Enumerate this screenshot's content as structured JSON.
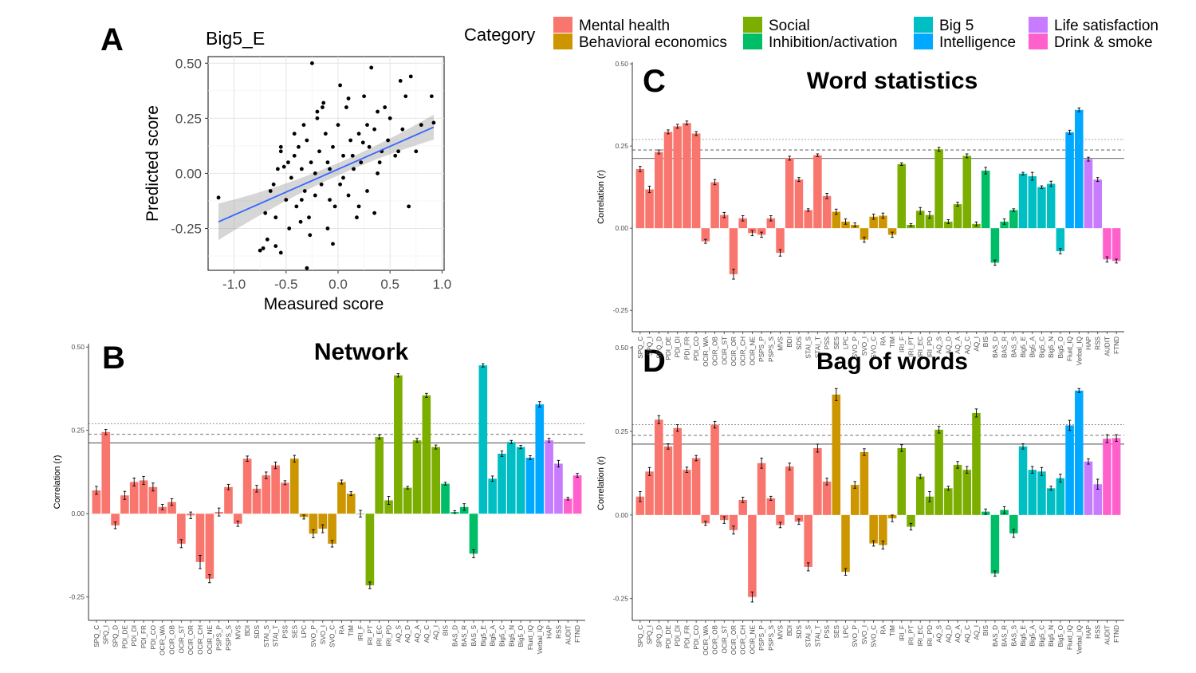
{
  "legend": {
    "title": "Category",
    "items": [
      {
        "label": "Mental health",
        "color": "#F8766D"
      },
      {
        "label": "Behavioral economics",
        "color": "#CD9600"
      },
      {
        "label": "Social",
        "color": "#7CAE00"
      },
      {
        "label": "Inhibition/activation",
        "color": "#00BE67"
      },
      {
        "label": "Big 5",
        "color": "#00BFC4"
      },
      {
        "label": "Intelligence",
        "color": "#00A9FF"
      },
      {
        "label": "Life satisfaction",
        "color": "#C77CFF"
      },
      {
        "label": "Drink & smoke",
        "color": "#FF61CC"
      }
    ]
  },
  "chart_data": [
    {
      "panel": "A",
      "type": "scatter",
      "title": "Big5_E",
      "xlabel": "Measured score",
      "ylabel": "Predicted score",
      "xlim": [
        -1.25,
        1.02
      ],
      "ylim": [
        -0.44,
        0.53
      ],
      "x_ticks": [
        -1.0,
        -0.5,
        0.0,
        0.5,
        1.0
      ],
      "x_tick_labels": [
        "-1.0",
        "-0.5",
        "0.0",
        "0.5",
        "1.0"
      ],
      "y_ticks": [
        -0.25,
        0.0,
        0.25,
        0.5
      ],
      "y_tick_labels": [
        "-0.25",
        "0.00",
        "0.25",
        "0.50"
      ],
      "grid": true,
      "fit_line": {
        "x": [
          -1.15,
          0.92
        ],
        "y": [
          -0.22,
          0.21
        ],
        "color": "#3366FF"
      },
      "points": [
        [
          -1.15,
          -0.11
        ],
        [
          -0.75,
          -0.35
        ],
        [
          -0.72,
          -0.34
        ],
        [
          -0.68,
          -0.3
        ],
        [
          -0.6,
          -0.33
        ],
        [
          -0.55,
          -0.36
        ],
        [
          -0.65,
          -0.08
        ],
        [
          -0.62,
          -0.05
        ],
        [
          -0.58,
          0.02
        ],
        [
          -0.55,
          0.1
        ],
        [
          -0.52,
          0.03
        ],
        [
          -0.5,
          -0.12
        ],
        [
          -0.48,
          0.05
        ],
        [
          -0.45,
          -0.02
        ],
        [
          -0.42,
          0.08
        ],
        [
          -0.4,
          -0.15
        ],
        [
          -0.38,
          0.12
        ],
        [
          -0.35,
          0.02
        ],
        [
          -0.32,
          -0.08
        ],
        [
          -0.3,
          0.15
        ],
        [
          -0.28,
          -0.2
        ],
        [
          -0.26,
          0.05
        ],
        [
          -0.25,
          0.5
        ],
        [
          -0.22,
          -0.1
        ],
        [
          -0.2,
          0.25
        ],
        [
          -0.18,
          0.1
        ],
        [
          -0.16,
          -0.05
        ],
        [
          -0.15,
          0.3
        ],
        [
          -0.12,
          0.18
        ],
        [
          -0.1,
          -0.25
        ],
        [
          -0.08,
          0.02
        ],
        [
          -0.05,
          0.12
        ],
        [
          -0.03,
          -0.15
        ],
        [
          0.0,
          0.22
        ],
        [
          0.02,
          -0.05
        ],
        [
          0.05,
          0.08
        ],
        [
          0.08,
          0.3
        ],
        [
          0.1,
          -0.1
        ],
        [
          0.12,
          0.15
        ],
        [
          0.15,
          0.02
        ],
        [
          0.18,
          -0.2
        ],
        [
          0.2,
          0.18
        ],
        [
          0.22,
          0.05
        ],
        [
          0.25,
          0.35
        ],
        [
          0.28,
          -0.08
        ],
        [
          0.3,
          0.12
        ],
        [
          0.32,
          0.48
        ],
        [
          0.35,
          0.2
        ],
        [
          0.38,
          0.0
        ],
        [
          0.42,
          0.1
        ],
        [
          0.45,
          0.3
        ],
        [
          0.5,
          0.25
        ],
        [
          0.55,
          0.08
        ],
        [
          0.6,
          0.42
        ],
        [
          0.65,
          0.35
        ],
        [
          0.68,
          -0.15
        ],
        [
          0.7,
          0.44
        ],
        [
          0.75,
          0.1
        ],
        [
          0.8,
          0.22
        ],
        [
          0.9,
          0.35
        ],
        [
          0.92,
          0.23
        ],
        [
          -0.7,
          -0.18
        ],
        [
          -0.47,
          -0.25
        ],
        [
          -0.36,
          -0.22
        ],
        [
          -0.27,
          -0.28
        ],
        [
          -0.05,
          -0.32
        ],
        [
          0.35,
          -0.18
        ],
        [
          -0.55,
          0.12
        ],
        [
          -0.33,
          0.22
        ],
        [
          -0.14,
          0.32
        ],
        [
          0.1,
          0.34
        ],
        [
          0.02,
          0.4
        ],
        [
          -0.2,
          0.28
        ],
        [
          0.4,
          0.05
        ],
        [
          0.58,
          0.1
        ],
        [
          0.2,
          -0.15
        ],
        [
          -0.1,
          0.05
        ],
        [
          0.05,
          -0.02
        ],
        [
          -0.35,
          -0.12
        ],
        [
          0.28,
          0.22
        ],
        [
          -0.22,
          0.0
        ],
        [
          0.14,
          0.08
        ],
        [
          -0.42,
          0.18
        ],
        [
          0.48,
          0.15
        ],
        [
          0.38,
          0.28
        ],
        [
          -0.6,
          -0.2
        ],
        [
          -0.3,
          -0.43
        ],
        [
          -0.08,
          -0.12
        ],
        [
          0.24,
          0.14
        ],
        [
          0.62,
          0.2
        ]
      ]
    },
    {
      "panel": "B",
      "type": "bar",
      "title": "Network",
      "ylabel": "Correlation (r)",
      "ylim": [
        -0.32,
        0.51
      ],
      "y_ticks": [
        -0.25,
        0.0,
        0.25,
        0.5
      ],
      "y_tick_labels": [
        "-0.25",
        "0.00",
        "0.25",
        "0.50"
      ],
      "ref_lines": [
        0.212,
        0.238,
        0.27
      ],
      "categories": [
        "SPQ_C",
        "SPQ_I",
        "SPQ_D",
        "PDI_DE",
        "PDI_DI",
        "PDI_FR",
        "PDI_CO",
        "OCIR_WA",
        "OCIR_OB",
        "OCIR_ST",
        "OCIR_OR",
        "OCIR_CH",
        "OCIR_NE",
        "PSPS_P",
        "PSPS_S",
        "MVS",
        "BDI",
        "SDS",
        "STAI_S",
        "STAI_T",
        "PSS",
        "SES",
        "LPC",
        "SVO_P",
        "SVO_I",
        "SVO_C",
        "RA",
        "TIM",
        "IRI_F",
        "IRI_PT",
        "IRI_EC",
        "IRI_PD",
        "AQ_S",
        "AQ_D",
        "AQ_A",
        "AQ_C",
        "AQ_I",
        "BIS",
        "BAS_D",
        "BAS_R",
        "BAS_S",
        "Big5_E",
        "Big5_A",
        "Big5_C",
        "Big5_N",
        "Big5_O",
        "Fluid_IQ",
        "Verbal_IQ",
        "HAP",
        "RSS",
        "AUDIT",
        "FTND"
      ],
      "groups": [
        0,
        0,
        0,
        0,
        0,
        0,
        0,
        0,
        0,
        0,
        0,
        0,
        0,
        0,
        0,
        0,
        0,
        0,
        0,
        0,
        0,
        1,
        1,
        1,
        1,
        1,
        1,
        1,
        2,
        2,
        2,
        2,
        2,
        2,
        2,
        2,
        2,
        3,
        3,
        3,
        3,
        4,
        4,
        4,
        4,
        4,
        5,
        5,
        6,
        6,
        7,
        7
      ],
      "values": [
        0.07,
        0.245,
        -0.035,
        0.055,
        0.095,
        0.1,
        0.08,
        0.02,
        0.035,
        -0.09,
        -0.005,
        -0.145,
        -0.195,
        0.005,
        0.08,
        -0.03,
        0.165,
        0.075,
        0.115,
        0.145,
        0.093,
        0.165,
        -0.01,
        -0.06,
        -0.045,
        -0.09,
        0.095,
        0.06,
        0.0,
        -0.215,
        0.23,
        0.04,
        0.415,
        0.078,
        0.22,
        0.355,
        0.2,
        0.09,
        0.005,
        0.02,
        -0.12,
        0.445,
        0.105,
        0.18,
        0.215,
        0.2,
        0.168,
        0.328,
        0.22,
        0.15,
        0.045,
        0.115
      ],
      "errors": [
        0.012,
        0.008,
        0.01,
        0.012,
        0.012,
        0.012,
        0.012,
        0.008,
        0.01,
        0.012,
        0.01,
        0.02,
        0.012,
        0.012,
        0.008,
        0.008,
        0.008,
        0.01,
        0.01,
        0.01,
        0.006,
        0.01,
        0.006,
        0.012,
        0.012,
        0.01,
        0.006,
        0.006,
        0.01,
        0.01,
        0.006,
        0.012,
        0.005,
        0.004,
        0.006,
        0.006,
        0.006,
        0.004,
        0.004,
        0.01,
        0.012,
        0.005,
        0.008,
        0.008,
        0.005,
        0.005,
        0.006,
        0.008,
        0.006,
        0.01,
        0.004,
        0.006
      ]
    },
    {
      "panel": "C",
      "type": "bar",
      "title": "Word statistics",
      "ylabel": "Correlation (r)",
      "ylim": [
        -0.315,
        0.505
      ],
      "y_ticks": [
        -0.25,
        0.0,
        0.25,
        0.5
      ],
      "y_tick_labels": [
        "-0.25",
        "0.00",
        "0.25",
        "0.50"
      ],
      "ref_lines": [
        0.212,
        0.238,
        0.27
      ],
      "categories": [
        "SPQ_C",
        "SPQ_I",
        "SPQ_D",
        "PDI_DE",
        "PDI_DI",
        "PDI_FR",
        "PDI_CO",
        "OCIR_WA",
        "OCIR_OB",
        "OCIR_ST",
        "OCIR_OR",
        "OCIR_CH",
        "OCIR_NE",
        "PSPS_P",
        "PSPS_S",
        "MVS",
        "BDI",
        "SDS",
        "STAI_S",
        "STAI_T",
        "PSS",
        "SES",
        "LPC",
        "SVO_P",
        "SVO_I",
        "SVO_C",
        "RA",
        "TIM",
        "IRI_F",
        "IRI_PT",
        "IRI_EC",
        "IRI_PD",
        "AQ_S",
        "AQ_D",
        "AQ_A",
        "AQ_C",
        "AQ_I",
        "BIS",
        "BAS_D",
        "BAS_R",
        "BAS_S",
        "Big5_E",
        "Big5_A",
        "Big5_C",
        "Big5_N",
        "Big5_O",
        "Fluid_IQ",
        "Verbal_IQ",
        "HAP",
        "RSS",
        "AUDIT",
        "FTND"
      ],
      "groups": [
        0,
        0,
        0,
        0,
        0,
        0,
        0,
        0,
        0,
        0,
        0,
        0,
        0,
        0,
        0,
        0,
        0,
        0,
        0,
        0,
        0,
        1,
        1,
        1,
        1,
        1,
        1,
        1,
        2,
        2,
        2,
        2,
        2,
        2,
        2,
        2,
        2,
        3,
        3,
        3,
        3,
        4,
        4,
        4,
        4,
        4,
        5,
        5,
        6,
        6,
        7,
        7
      ],
      "values": [
        0.18,
        0.118,
        0.232,
        0.293,
        0.31,
        0.32,
        0.288,
        -0.04,
        0.14,
        0.04,
        -0.14,
        0.03,
        -0.015,
        -0.02,
        0.03,
        -0.075,
        0.213,
        0.148,
        0.055,
        0.222,
        0.098,
        0.05,
        0.02,
        0.01,
        -0.035,
        0.035,
        0.038,
        -0.02,
        0.195,
        0.01,
        0.053,
        0.04,
        0.24,
        0.02,
        0.073,
        0.22,
        0.013,
        0.175,
        -0.105,
        0.02,
        0.055,
        0.166,
        0.158,
        0.125,
        0.135,
        -0.07,
        0.292,
        0.36,
        0.21,
        0.148,
        -0.095,
        -0.1
      ],
      "errors": [
        0.008,
        0.01,
        0.006,
        0.006,
        0.006,
        0.006,
        0.006,
        0.006,
        0.008,
        0.008,
        0.015,
        0.008,
        0.008,
        0.008,
        0.008,
        0.01,
        0.006,
        0.006,
        0.004,
        0.004,
        0.008,
        0.008,
        0.008,
        0.006,
        0.008,
        0.008,
        0.008,
        0.008,
        0.004,
        0.004,
        0.01,
        0.01,
        0.006,
        0.006,
        0.006,
        0.006,
        0.006,
        0.01,
        0.008,
        0.008,
        0.004,
        0.004,
        0.012,
        0.004,
        0.008,
        0.008,
        0.006,
        0.006,
        0.006,
        0.006,
        0.008,
        0.006
      ]
    },
    {
      "panel": "D",
      "type": "bar",
      "title": "Bag of words",
      "ylabel": "Correlation (r)",
      "ylim": [
        -0.315,
        0.505
      ],
      "y_ticks": [
        -0.25,
        0.0,
        0.25,
        0.5
      ],
      "y_tick_labels": [
        "-0.25",
        "0.00",
        "0.25",
        "0.50"
      ],
      "ref_lines": [
        0.212,
        0.238,
        0.27
      ],
      "categories": [
        "SPQ_C",
        "SPQ_I",
        "SPQ_D",
        "PDI_DE",
        "PDI_DI",
        "PDI_FR",
        "PDI_CO",
        "OCIR_WA",
        "OCIR_OB",
        "OCIR_ST",
        "OCIR_OR",
        "OCIR_CH",
        "OCIR_NE",
        "PSPS_P",
        "PSPS_S",
        "MVS",
        "BDI",
        "SDS",
        "STAI_S",
        "STAI_T",
        "PSS",
        "SES",
        "LPC",
        "SVO_P",
        "SVO_I",
        "SVO_C",
        "RA",
        "TIM",
        "IRI_F",
        "IRI_PT",
        "IRI_EC",
        "IRI_PD",
        "AQ_S",
        "AQ_D",
        "AQ_A",
        "AQ_C",
        "AQ_I",
        "BIS",
        "BAS_D",
        "BAS_R",
        "BAS_S",
        "Big5_E",
        "Big5_A",
        "Big5_C",
        "Big5_N",
        "Big5_O",
        "Fluid_IQ",
        "Verbal_IQ",
        "HAP",
        "RSS",
        "AUDIT",
        "FTND"
      ],
      "groups": [
        0,
        0,
        0,
        0,
        0,
        0,
        0,
        0,
        0,
        0,
        0,
        0,
        0,
        0,
        0,
        0,
        0,
        0,
        0,
        0,
        0,
        1,
        1,
        1,
        1,
        1,
        1,
        1,
        2,
        2,
        2,
        2,
        2,
        2,
        2,
        2,
        2,
        3,
        3,
        3,
        3,
        4,
        4,
        4,
        4,
        4,
        5,
        5,
        6,
        6,
        7,
        7
      ],
      "values": [
        0.055,
        0.13,
        0.285,
        0.205,
        0.26,
        0.135,
        0.17,
        -0.025,
        0.27,
        -0.015,
        -0.045,
        0.045,
        -0.245,
        0.155,
        0.05,
        -0.03,
        0.145,
        -0.02,
        -0.155,
        0.2,
        0.1,
        0.36,
        -0.17,
        0.09,
        0.188,
        -0.085,
        -0.09,
        -0.01,
        0.2,
        -0.035,
        0.115,
        0.055,
        0.255,
        0.08,
        0.15,
        0.135,
        0.305,
        0.01,
        -0.175,
        0.015,
        -0.055,
        0.205,
        0.135,
        0.13,
        0.08,
        0.11,
        0.268,
        0.372,
        0.16,
        0.092,
        0.228,
        0.23
      ],
      "errors": [
        0.015,
        0.012,
        0.012,
        0.008,
        0.01,
        0.008,
        0.008,
        0.006,
        0.01,
        0.01,
        0.012,
        0.008,
        0.015,
        0.015,
        0.006,
        0.008,
        0.01,
        0.008,
        0.012,
        0.012,
        0.01,
        0.018,
        0.01,
        0.01,
        0.01,
        0.008,
        0.012,
        0.01,
        0.01,
        0.01,
        0.006,
        0.015,
        0.01,
        0.006,
        0.01,
        0.01,
        0.012,
        0.008,
        0.008,
        0.01,
        0.012,
        0.008,
        0.01,
        0.012,
        0.006,
        0.012,
        0.015,
        0.006,
        0.008,
        0.015,
        0.012,
        0.01
      ]
    }
  ],
  "panel_letters": {
    "A": "A",
    "B": "B",
    "C": "C",
    "D": "D"
  }
}
